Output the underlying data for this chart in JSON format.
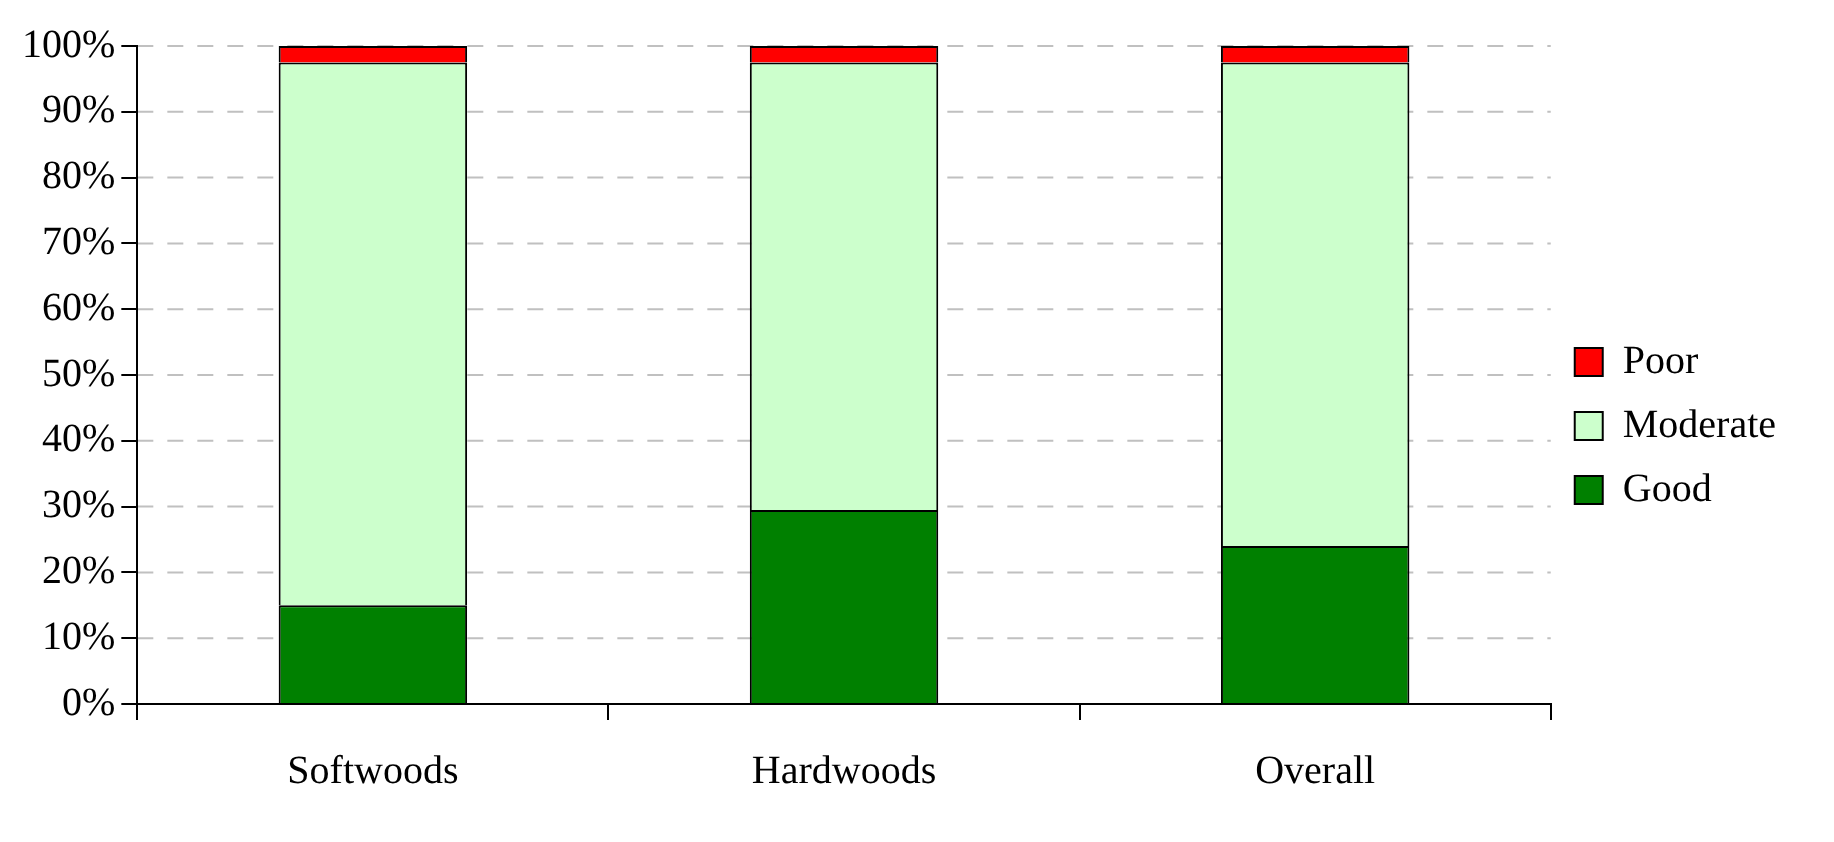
{
  "chart_data": {
    "type": "bar",
    "stacked": true,
    "categories": [
      "Softwoods",
      "Hardwoods",
      "Overall"
    ],
    "series": [
      {
        "name": "Good",
        "color": "#008000",
        "values": [
          15,
          29.5,
          24
        ]
      },
      {
        "name": "Moderate",
        "color": "#ccffcc",
        "values": [
          82.5,
          68,
          73.5
        ]
      },
      {
        "name": "Poor",
        "color": "#ff0000",
        "values": [
          2.5,
          2.5,
          2.5
        ]
      }
    ],
    "ylim": [
      0,
      100
    ],
    "yticks": [
      {
        "value": 0,
        "label": "0%"
      },
      {
        "value": 10,
        "label": "10%"
      },
      {
        "value": 20,
        "label": "20%"
      },
      {
        "value": 30,
        "label": "30%"
      },
      {
        "value": 40,
        "label": "40%"
      },
      {
        "value": 50,
        "label": "50%"
      },
      {
        "value": 60,
        "label": "60%"
      },
      {
        "value": 70,
        "label": "70%"
      },
      {
        "value": 80,
        "label": "80%"
      },
      {
        "value": 90,
        "label": "90%"
      },
      {
        "value": 100,
        "label": "100%"
      }
    ],
    "grid": "y",
    "legend": "right"
  }
}
